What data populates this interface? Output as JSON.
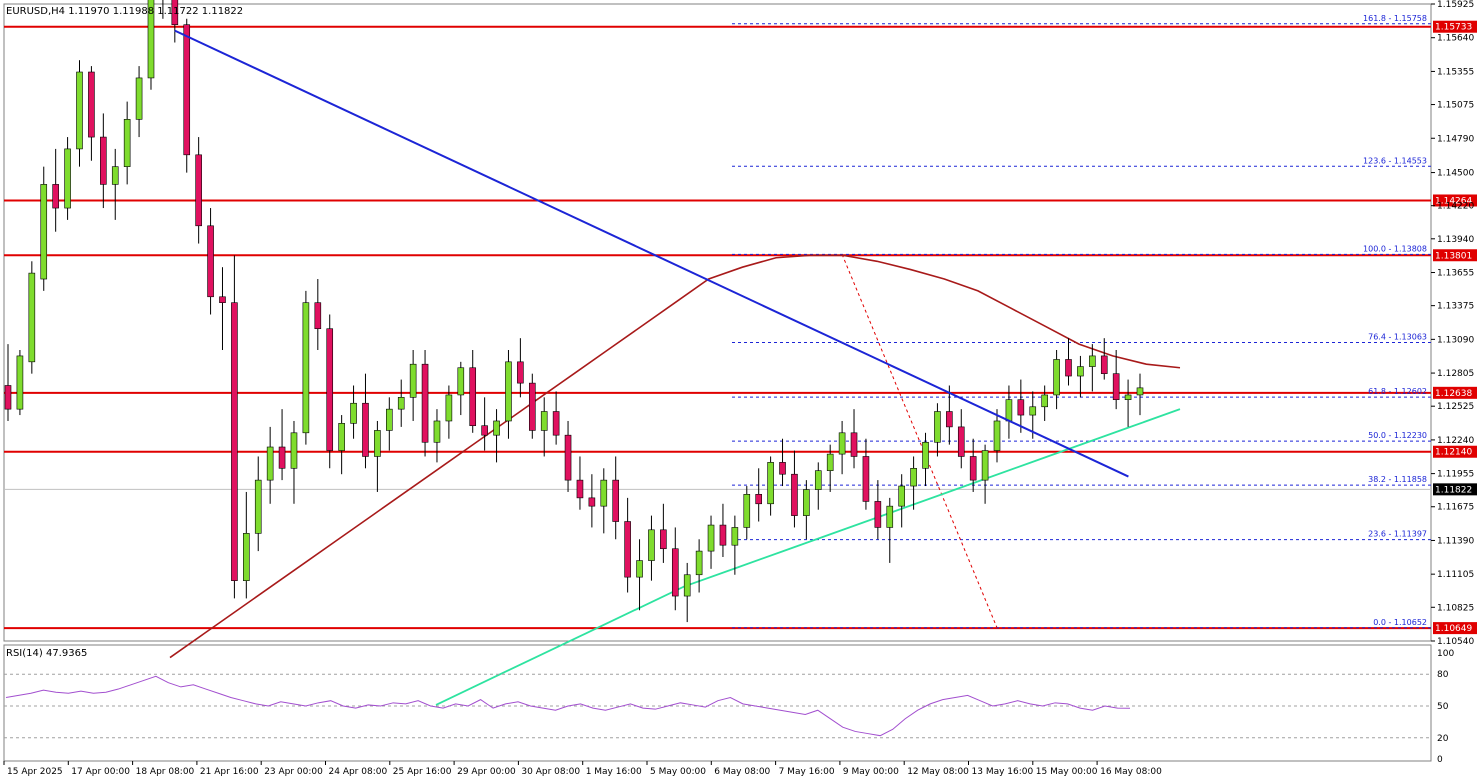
{
  "header": {
    "symbol_line": "EURUSD,H4  1.11970 1.11988 1.11722 1.11822"
  },
  "rsi": {
    "label": "RSI(14) 47.9365",
    "levels": [
      "100",
      "80",
      "50",
      "20",
      "0"
    ]
  },
  "colors": {
    "background": "#ffffff",
    "bull_candle": "#7fdc2e",
    "bear_candle": "#e0115f",
    "support_resistance": "#e00000",
    "trendline": "#1c25d6",
    "ma_slow": "#a81a1a",
    "ma_fast": "#2ee3a0",
    "fib_lines": "#1c25d6",
    "rsi_line": "#a24fcf",
    "axis_text": "#000000"
  },
  "chart_data": [
    {
      "type": "candlestick",
      "symbol": "EURUSD",
      "timeframe": "H4",
      "ohlc_current": {
        "open": 1.1197,
        "high": 1.11988,
        "low": 1.11722,
        "close": 1.11822
      },
      "ylim": [
        1.1054,
        1.15925
      ],
      "y_ticks": [
        "1.15925",
        "1.15640",
        "1.15355",
        "1.15075",
        "1.14790",
        "1.14500",
        "1.14220",
        "1.13940",
        "1.13655",
        "1.13375",
        "1.13090",
        "1.12805",
        "1.12525",
        "1.12240",
        "1.11955",
        "1.11675",
        "1.11390",
        "1.11105",
        "1.10825",
        "1.10540"
      ],
      "x_ticks": [
        "15 Apr 2025",
        "17 Apr 00:00",
        "18 Apr 08:00",
        "21 Apr 16:00",
        "23 Apr 00:00",
        "24 Apr 08:00",
        "25 Apr 16:00",
        "29 Apr 00:00",
        "30 Apr 08:00",
        "1 May 16:00",
        "5 May 00:00",
        "6 May 08:00",
        "7 May 16:00",
        "9 May 00:00",
        "12 May 08:00",
        "13 May 16:00",
        "15 May 00:00",
        "16 May 08:00"
      ],
      "horizontal_levels": [
        {
          "value": 1.15733,
          "label": "1.15733"
        },
        {
          "value": 1.14264,
          "label": "1.14264"
        },
        {
          "value": 1.13801,
          "label": "1.13801"
        },
        {
          "value": 1.12638,
          "label": "1.12638"
        },
        {
          "value": 1.1214,
          "label": "1.12140"
        },
        {
          "value": 1.10649,
          "label": "1.10649"
        }
      ],
      "current_price": {
        "value": 1.11822,
        "label": "1.11822"
      },
      "fibonacci": [
        {
          "label": "161.8 - 1.15758",
          "value": 1.15758
        },
        {
          "label": "123.6 - 1.14553",
          "value": 1.14553
        },
        {
          "label": "100.0 - 1.13808",
          "value": 1.13808
        },
        {
          "label": "76.4 - 1.13063",
          "value": 1.13063
        },
        {
          "label": "61.8 - 1.12602",
          "value": 1.12602
        },
        {
          "label": "50.0 - 1.12230",
          "value": 1.1223
        },
        {
          "label": "38.2 - 1.11858",
          "value": 1.11858
        },
        {
          "label": "23.6 - 1.11397",
          "value": 1.11397
        },
        {
          "label": "0.0 - 1.10652",
          "value": 1.10652
        }
      ],
      "trendline": {
        "from": [
          14,
          1.157
        ],
        "to": [
          90,
          1.1193
        ]
      },
      "candles": [
        [
          1.127,
          1.1305,
          1.124,
          1.125
        ],
        [
          1.125,
          1.13,
          1.1245,
          1.1295
        ],
        [
          1.129,
          1.1375,
          1.128,
          1.1365
        ],
        [
          1.136,
          1.1455,
          1.135,
          1.144
        ],
        [
          1.144,
          1.147,
          1.14,
          1.142
        ],
        [
          1.142,
          1.148,
          1.141,
          1.147
        ],
        [
          1.147,
          1.1545,
          1.1455,
          1.1535
        ],
        [
          1.1535,
          1.154,
          1.146,
          1.148
        ],
        [
          1.148,
          1.15,
          1.142,
          1.144
        ],
        [
          1.144,
          1.147,
          1.141,
          1.1455
        ],
        [
          1.1455,
          1.151,
          1.144,
          1.1495
        ],
        [
          1.1495,
          1.154,
          1.148,
          1.153
        ],
        [
          1.153,
          1.178,
          1.152,
          1.164
        ],
        [
          1.164,
          1.168,
          1.158,
          1.1598
        ],
        [
          1.1598,
          1.1675,
          1.156,
          1.1575
        ],
        [
          1.1575,
          1.158,
          1.145,
          1.1465
        ],
        [
          1.1465,
          1.148,
          1.139,
          1.1405
        ],
        [
          1.1405,
          1.142,
          1.133,
          1.1345
        ],
        [
          1.1345,
          1.137,
          1.13,
          1.134
        ],
        [
          1.134,
          1.138,
          1.109,
          1.1105
        ],
        [
          1.1105,
          1.118,
          1.109,
          1.1145
        ],
        [
          1.1145,
          1.121,
          1.113,
          1.119
        ],
        [
          1.119,
          1.1235,
          1.117,
          1.1218
        ],
        [
          1.1218,
          1.125,
          1.119,
          1.12
        ],
        [
          1.12,
          1.124,
          1.117,
          1.123
        ],
        [
          1.123,
          1.135,
          1.122,
          1.134
        ],
        [
          1.134,
          1.136,
          1.13,
          1.1318
        ],
        [
          1.1318,
          1.133,
          1.12,
          1.1215
        ],
        [
          1.1215,
          1.1245,
          1.1195,
          1.1238
        ],
        [
          1.1238,
          1.127,
          1.1225,
          1.1255
        ],
        [
          1.1255,
          1.128,
          1.12,
          1.121
        ],
        [
          1.121,
          1.124,
          1.118,
          1.1232
        ],
        [
          1.1232,
          1.126,
          1.1215,
          1.125
        ],
        [
          1.125,
          1.1275,
          1.1235,
          1.126
        ],
        [
          1.126,
          1.13,
          1.124,
          1.1288
        ],
        [
          1.1288,
          1.13,
          1.121,
          1.1222
        ],
        [
          1.1222,
          1.125,
          1.1205,
          1.124
        ],
        [
          1.124,
          1.127,
          1.1225,
          1.1262
        ],
        [
          1.1262,
          1.129,
          1.1245,
          1.1285
        ],
        [
          1.1285,
          1.13,
          1.123,
          1.1236
        ],
        [
          1.1236,
          1.126,
          1.1215,
          1.1228
        ],
        [
          1.1228,
          1.125,
          1.1205,
          1.124
        ],
        [
          1.124,
          1.13,
          1.1225,
          1.129
        ],
        [
          1.129,
          1.131,
          1.126,
          1.1272
        ],
        [
          1.1272,
          1.128,
          1.1225,
          1.1232
        ],
        [
          1.1232,
          1.126,
          1.121,
          1.1248
        ],
        [
          1.1248,
          1.1265,
          1.122,
          1.1228
        ],
        [
          1.1228,
          1.124,
          1.118,
          1.119
        ],
        [
          1.119,
          1.121,
          1.1165,
          1.1175
        ],
        [
          1.1175,
          1.1195,
          1.115,
          1.1168
        ],
        [
          1.1168,
          1.12,
          1.1145,
          1.119
        ],
        [
          1.119,
          1.121,
          1.114,
          1.1155
        ],
        [
          1.1155,
          1.1175,
          1.1095,
          1.1108
        ],
        [
          1.1108,
          1.114,
          1.108,
          1.1122
        ],
        [
          1.1122,
          1.116,
          1.1105,
          1.1148
        ],
        [
          1.1148,
          1.117,
          1.112,
          1.1132
        ],
        [
          1.1132,
          1.115,
          1.108,
          1.1092
        ],
        [
          1.1092,
          1.112,
          1.107,
          1.111
        ],
        [
          1.111,
          1.114,
          1.1095,
          1.113
        ],
        [
          1.113,
          1.116,
          1.1115,
          1.1152
        ],
        [
          1.1152,
          1.117,
          1.1125,
          1.1135
        ],
        [
          1.1135,
          1.116,
          1.111,
          1.115
        ],
        [
          1.115,
          1.1185,
          1.114,
          1.1178
        ],
        [
          1.1178,
          1.12,
          1.1155,
          1.117
        ],
        [
          1.117,
          1.121,
          1.116,
          1.1205
        ],
        [
          1.1205,
          1.1225,
          1.1185,
          1.1195
        ],
        [
          1.1195,
          1.1215,
          1.115,
          1.116
        ],
        [
          1.116,
          1.119,
          1.114,
          1.1182
        ],
        [
          1.1182,
          1.1205,
          1.1165,
          1.1198
        ],
        [
          1.1198,
          1.122,
          1.118,
          1.1212
        ],
        [
          1.1212,
          1.124,
          1.1195,
          1.123
        ],
        [
          1.123,
          1.125,
          1.12,
          1.121
        ],
        [
          1.121,
          1.1225,
          1.1165,
          1.1172
        ],
        [
          1.1172,
          1.119,
          1.114,
          1.115
        ],
        [
          1.115,
          1.1175,
          1.112,
          1.1168
        ],
        [
          1.1168,
          1.1195,
          1.115,
          1.1185
        ],
        [
          1.1185,
          1.121,
          1.1165,
          1.12
        ],
        [
          1.12,
          1.123,
          1.1185,
          1.1222
        ],
        [
          1.1222,
          1.1255,
          1.121,
          1.1248
        ],
        [
          1.1248,
          1.127,
          1.122,
          1.1235
        ],
        [
          1.1235,
          1.125,
          1.12,
          1.121
        ],
        [
          1.121,
          1.1225,
          1.118,
          1.119
        ],
        [
          1.119,
          1.122,
          1.117,
          1.1215
        ],
        [
          1.1215,
          1.125,
          1.1205,
          1.124
        ],
        [
          1.124,
          1.127,
          1.1225,
          1.1258
        ],
        [
          1.1258,
          1.1275,
          1.123,
          1.1245
        ],
        [
          1.1245,
          1.1265,
          1.1225,
          1.1252
        ],
        [
          1.1252,
          1.127,
          1.124,
          1.1262
        ],
        [
          1.1262,
          1.13,
          1.125,
          1.1292
        ],
        [
          1.1292,
          1.131,
          1.127,
          1.1278
        ],
        [
          1.1278,
          1.1295,
          1.126,
          1.1286
        ],
        [
          1.1286,
          1.1305,
          1.1265,
          1.1295
        ],
        [
          1.1295,
          1.131,
          1.1275,
          1.128
        ],
        [
          1.128,
          1.13,
          1.125,
          1.1258
        ],
        [
          1.1258,
          1.1275,
          1.1235,
          1.1262
        ],
        [
          1.1262,
          1.128,
          1.1245,
          1.1268
        ]
      ],
      "ma_slow_values": [
        1.104,
        1.106,
        1.108,
        1.11,
        1.112,
        1.114,
        1.116,
        1.118,
        1.12,
        1.122,
        1.124,
        1.126,
        1.128,
        1.13,
        1.132,
        1.134,
        1.136,
        1.137,
        1.1378,
        1.138,
        1.138,
        1.1375,
        1.1368,
        1.136,
        1.135,
        1.1335,
        1.132,
        1.1305,
        1.1295,
        1.1288,
        1.1285
      ],
      "ma_fast_values": [
        1.1,
        1.102,
        1.104,
        1.106,
        1.108,
        1.11,
        1.1115,
        1.113,
        1.1145,
        1.116,
        1.1175,
        1.119,
        1.1205,
        1.122,
        1.1235,
        1.125
      ],
      "rsi_values": [
        58,
        60,
        62,
        65,
        63,
        62,
        64,
        62,
        63,
        66,
        70,
        74,
        78,
        72,
        68,
        70,
        66,
        62,
        58,
        55,
        52,
        50,
        54,
        52,
        50,
        53,
        55,
        50,
        48,
        51,
        50,
        53,
        52,
        55,
        50,
        48,
        52,
        50,
        56,
        48,
        52,
        54,
        50,
        48,
        46,
        50,
        52,
        48,
        46,
        49,
        52,
        48,
        47,
        50,
        53,
        51,
        49,
        55,
        58,
        52,
        50,
        48,
        46,
        44,
        42,
        46,
        38,
        30,
        26,
        24,
        22,
        28,
        38,
        46,
        52,
        56,
        58,
        60,
        55,
        50,
        52,
        55,
        52,
        50,
        53,
        52,
        48,
        46,
        50,
        48,
        47.9
      ],
      "rsi_ylim": [
        0,
        100
      ]
    }
  ]
}
